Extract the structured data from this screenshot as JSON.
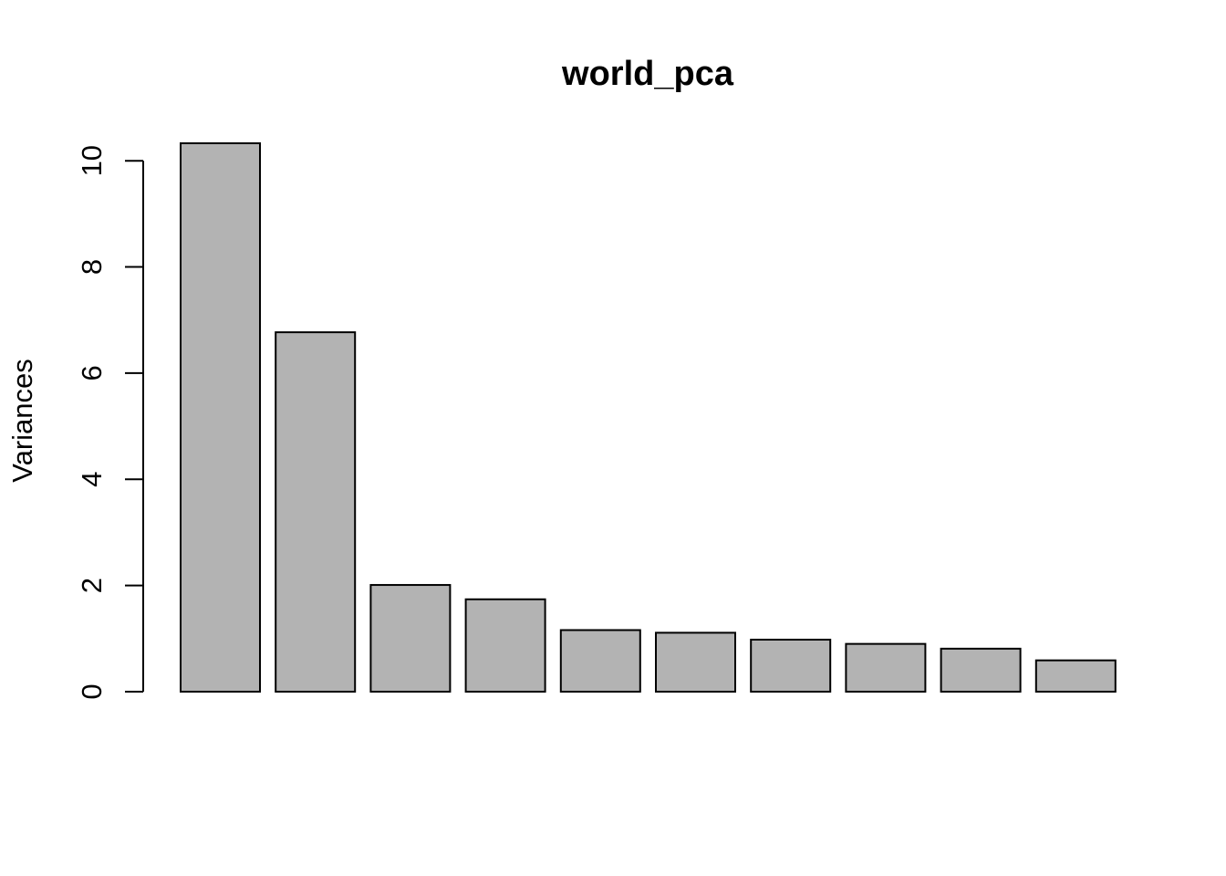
{
  "chart_data": {
    "type": "bar",
    "title": "world_pca",
    "xlabel": "",
    "ylabel": "Variances",
    "categories": [
      "",
      "",
      "",
      "",
      "",
      "",
      "",
      "",
      "",
      ""
    ],
    "values": [
      10.33,
      6.77,
      2.01,
      1.74,
      1.16,
      1.11,
      0.98,
      0.9,
      0.81,
      0.59
    ],
    "yticks": [
      0,
      2,
      4,
      6,
      8,
      10
    ],
    "ylim": [
      0,
      10.33
    ],
    "bar_color": "#b3b3b3",
    "bar_border_color": "#000000",
    "grid": false,
    "legend": "none"
  }
}
